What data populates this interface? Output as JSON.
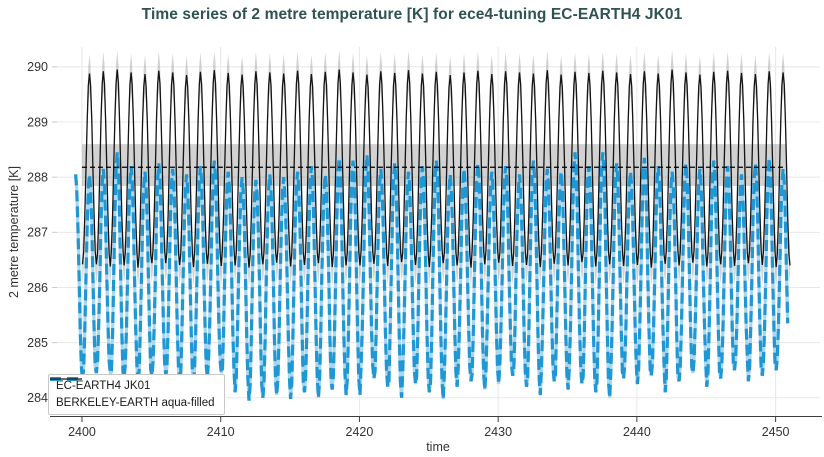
{
  "header": {
    "title": "Time series of 2 metre temperature [K] for ece4-tuning EC-EARTH4 JK01",
    "title_color": "#2f5252"
  },
  "legend": {
    "items": [
      {
        "label": "EC-EARTH4 JK01",
        "color": "#1f97d5",
        "style": "dashed"
      },
      {
        "label": "BERKELEY-EARTH aqua-filled",
        "color": "#141414",
        "style": "solid"
      }
    ]
  },
  "chart_data": {
    "type": "line",
    "title": "Time series of 2 metre temperature [K] for ece4-tuning EC-EARTH4 JK01",
    "xlabel": "time",
    "ylabel": "2 metre temperature [K]",
    "xlim": [
      2398.2,
      2453.2
    ],
    "ylim": [
      283.67,
      290.36
    ],
    "x_ticks": [
      2400,
      2410,
      2420,
      2430,
      2440,
      2450
    ],
    "y_ticks": [
      284,
      285,
      286,
      287,
      288,
      289,
      290
    ],
    "grid": true,
    "legend_position": "bottom-left",
    "period_years": 1,
    "colors": {
      "grid": "#e8e8e8",
      "axis": "#3c3c3c",
      "band": "rgba(115,115,115,0.32)",
      "blue_gap": "#a9d6ef"
    },
    "series": [
      {
        "name": "EC-EARTH4 JK01",
        "color": "#1f97d5",
        "dash": "dashed",
        "width": 3.2,
        "mean": 286.2,
        "peak_phase": 0.54,
        "t_start": 2399.54,
        "t_end": 2450.92,
        "annual_peaks": [
          288.05,
          288.15,
          288.45,
          288.2,
          288.1,
          288.25,
          288.15,
          288.05,
          288.2,
          288.3,
          288.1,
          288.0,
          287.95,
          288.05,
          288.0,
          288.1,
          288.2,
          288.05,
          288.35,
          288.3,
          288.4,
          288.15,
          288.25,
          288.1,
          288.2,
          288.3,
          288.05,
          288.15,
          288.25,
          288.1,
          288.2,
          288.05,
          288.3,
          288.15,
          288.1,
          288.45,
          288.2,
          288.45,
          288.25,
          288.1,
          288.35,
          288.2,
          288.1,
          288.25,
          288.15,
          288.3,
          288.2,
          288.05,
          288.25,
          288.35,
          288.15,
          288.2
        ],
        "annual_troughs": [
          284.3,
          284.45,
          284.2,
          284.35,
          284.25,
          284.4,
          284.3,
          284.2,
          284.35,
          284.45,
          284.25,
          284.1,
          283.95,
          284.0,
          284.05,
          283.98,
          284.1,
          284.0,
          284.15,
          284.05,
          284.35,
          284.2,
          284.0,
          284.25,
          284.1,
          283.98,
          284.2,
          284.3,
          284.15,
          284.25,
          284.4,
          284.2,
          284.05,
          284.3,
          284.15,
          284.25,
          284.1,
          284.0,
          284.2,
          284.35,
          284.25,
          284.4,
          284.1,
          284.3,
          284.45,
          284.2,
          284.35,
          284.5,
          284.3,
          284.4,
          284.5,
          284.35
        ]
      },
      {
        "name": "BERKELEY-EARTH aqua-filled",
        "color": "#141414",
        "dash": "solid",
        "width": 1.3,
        "mean": 288.17,
        "peak_phase": 0.54,
        "t_start": 2400.04,
        "t_end": 2451.04,
        "envelope_halfwidth": 0.35,
        "annual_peaks": [
          289.88,
          289.92,
          289.95,
          289.9,
          289.87,
          289.93,
          289.9,
          289.85,
          289.91,
          289.94,
          289.89,
          289.86,
          289.92,
          289.9,
          289.88,
          289.93,
          289.87,
          289.91,
          289.95,
          289.9,
          289.86,
          289.92,
          289.89,
          289.94,
          289.88,
          289.91,
          289.85,
          289.9,
          289.93,
          289.87,
          289.92,
          289.9,
          289.88,
          289.94,
          289.86,
          289.91,
          289.89,
          289.93,
          289.9,
          289.87,
          289.92,
          289.88,
          289.95,
          289.9,
          289.86,
          289.91,
          289.93,
          289.89,
          289.87,
          289.92,
          289.9,
          289.88
        ],
        "annual_troughs": [
          286.42,
          286.38,
          286.45,
          286.4,
          286.36,
          286.44,
          286.41,
          286.37,
          286.43,
          286.39,
          286.46,
          286.4,
          286.36,
          286.42,
          286.45,
          286.38,
          286.41,
          286.44,
          286.37,
          286.4,
          286.43,
          286.39,
          286.46,
          286.41,
          286.37,
          286.44,
          286.4,
          286.36,
          286.42,
          286.45,
          286.39,
          286.41,
          286.37,
          286.43,
          286.4,
          286.46,
          286.38,
          286.42,
          286.44,
          286.39,
          286.41,
          286.36,
          286.43,
          286.4,
          286.45,
          286.38,
          286.42,
          286.39,
          286.44,
          286.41,
          286.37,
          286.4
        ]
      }
    ],
    "reference": {
      "description": "BERKELEY-EARTH climatological mean with uncertainty band",
      "band_low": 287.84,
      "band_high": 288.6,
      "mean_line": 288.18,
      "t_start": 2400,
      "t_end": 2450.75,
      "line_style": "dashed"
    }
  }
}
